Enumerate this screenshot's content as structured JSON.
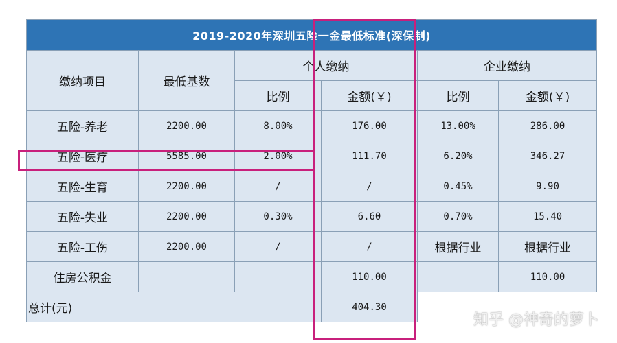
{
  "table": {
    "title": "2019-2020年深圳五险一金最低标准(深保制)",
    "headers": {
      "item": "缴纳项目",
      "base": "最低基数",
      "personal": "个人缴纳",
      "company": "企业缴纳",
      "ratio": "比例",
      "amount": "金额(￥)"
    },
    "rows": [
      {
        "item": "五险-养老",
        "base": "2200.00",
        "p_ratio": "8.00%",
        "p_amount": "176.00",
        "c_ratio": "13.00%",
        "c_amount": "286.00"
      },
      {
        "item": "五险-医疗",
        "base": "5585.00",
        "p_ratio": "2.00%",
        "p_amount": "111.70",
        "c_ratio": "6.20%",
        "c_amount": "346.27"
      },
      {
        "item": "五险-生育",
        "base": "2200.00",
        "p_ratio": "/",
        "p_amount": "/",
        "c_ratio": "0.45%",
        "c_amount": "9.90"
      },
      {
        "item": "五险-失业",
        "base": "2200.00",
        "p_ratio": "0.30%",
        "p_amount": "6.60",
        "c_ratio": "0.70%",
        "c_amount": "15.40"
      },
      {
        "item": "五险-工伤",
        "base": "2200.00",
        "p_ratio": "/",
        "p_amount": "/",
        "c_ratio": "根据行业",
        "c_amount": "根据行业"
      },
      {
        "item": "住房公积金",
        "base": "",
        "p_ratio": "",
        "p_amount": "110.00",
        "c_ratio": "",
        "c_amount": "110.00"
      }
    ],
    "total": {
      "label": "总计(元)",
      "p_amount": "404.30"
    }
  },
  "watermark": "知乎 @神奇的萝卜",
  "colors": {
    "title_bg": "#2e74b5",
    "cell_bg": "#dce6f1",
    "highlight": "#c8207c"
  }
}
